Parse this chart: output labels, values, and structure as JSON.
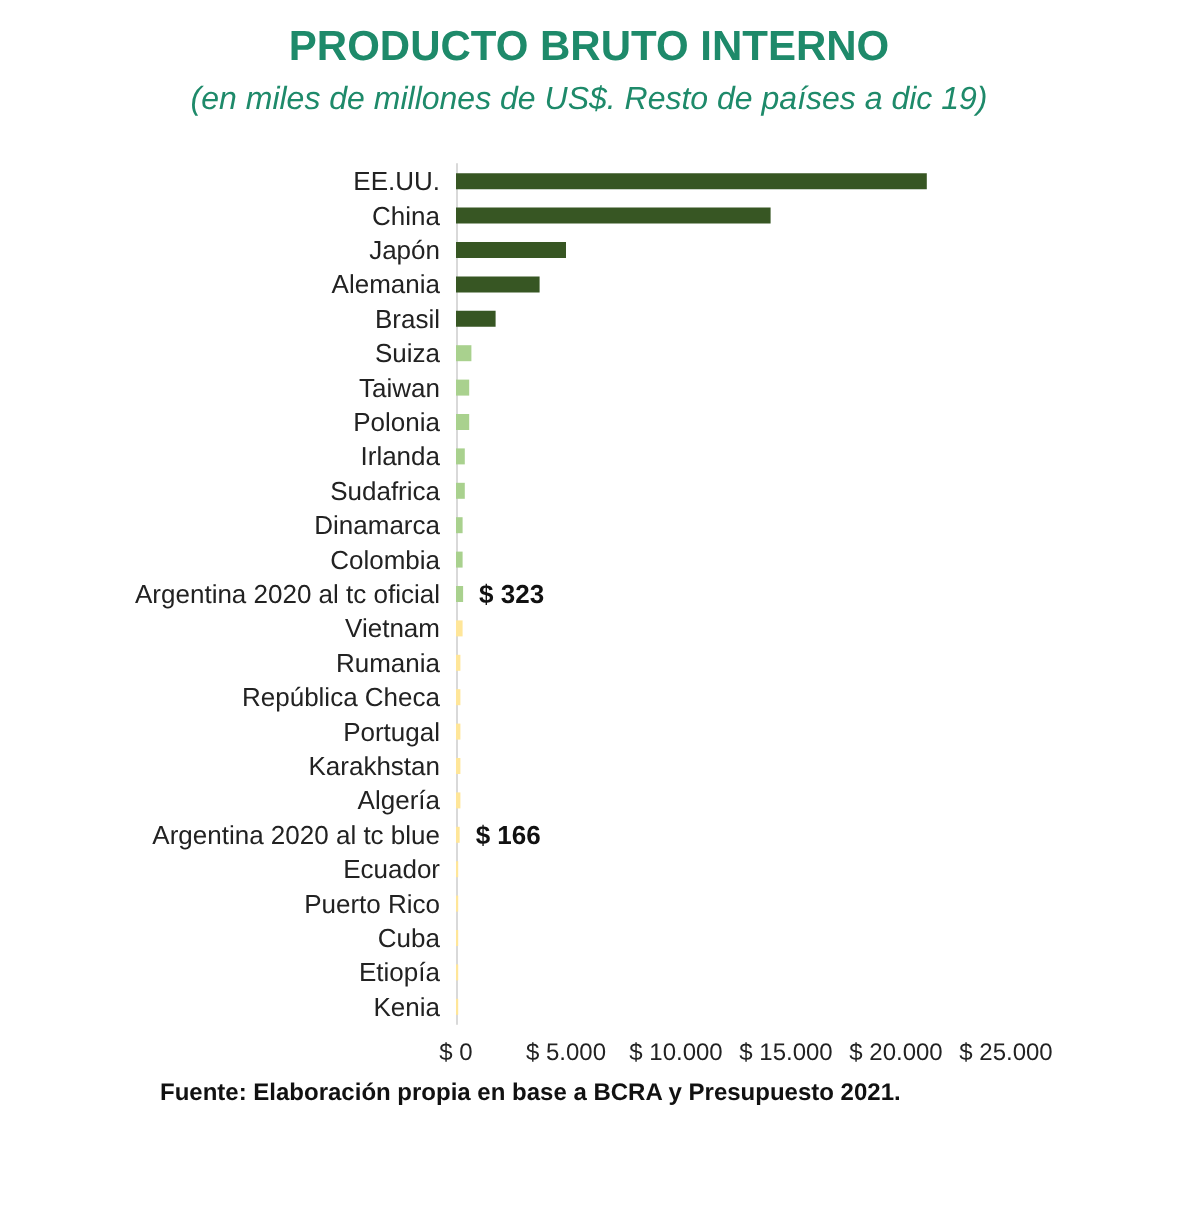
{
  "chart_data": {
    "type": "bar",
    "orientation": "horizontal",
    "title": "PRODUCTO BRUTO INTERNO",
    "subtitle": "(en miles de millones de US$. Resto de países a dic 19)",
    "categories": [
      "EE.UU.",
      "China",
      "Japón",
      "Alemania",
      "Brasil",
      "Suiza",
      "Taiwan",
      "Polonia",
      "Irlanda",
      "Sudafrica",
      "Dinamarca",
      "Colombia",
      "Argentina 2020 al tc oficial",
      "Vietnam",
      "Rumania",
      "República Checa",
      "Portugal",
      "Karakhstan",
      "Algería",
      "Argentina 2020 al tc blue",
      "Ecuador",
      "Puerto Rico",
      "Cuba",
      "Etiopía",
      "Kenia"
    ],
    "values": [
      21400,
      14300,
      5000,
      3800,
      1800,
      700,
      600,
      600,
      400,
      400,
      300,
      300,
      323,
      300,
      200,
      200,
      200,
      200,
      200,
      166,
      100,
      100,
      100,
      100,
      100
    ],
    "colors": [
      "#375623",
      "#375623",
      "#375623",
      "#375623",
      "#375623",
      "#a9d18e",
      "#a9d18e",
      "#a9d18e",
      "#a9d18e",
      "#a9d18e",
      "#a9d18e",
      "#a9d18e",
      "#a9d18e",
      "#ffe699",
      "#ffe699",
      "#ffe699",
      "#ffe699",
      "#ffe699",
      "#ffe699",
      "#ffe699",
      "#ffe699",
      "#ffe699",
      "#ffe699",
      "#ffe699",
      "#ffe699"
    ],
    "value_labels": [
      null,
      null,
      null,
      null,
      null,
      null,
      null,
      null,
      null,
      null,
      null,
      null,
      "$ 323",
      null,
      null,
      null,
      null,
      null,
      null,
      "$ 166",
      null,
      null,
      null,
      null,
      null
    ],
    "xlim": [
      0,
      25000
    ],
    "xticks": [
      {
        "value": 0,
        "label": "$ 0"
      },
      {
        "value": 5000,
        "label": "$ 5.000"
      },
      {
        "value": 10000,
        "label": "$ 10.000"
      },
      {
        "value": 15000,
        "label": "$ 15.000"
      },
      {
        "value": 20000,
        "label": "$ 20.000"
      },
      {
        "value": 25000,
        "label": "$ 25.000"
      }
    ],
    "annotations": [
      "Fuente: Elaboración propia en base a BCRA y Presupuesto 2021."
    ]
  }
}
